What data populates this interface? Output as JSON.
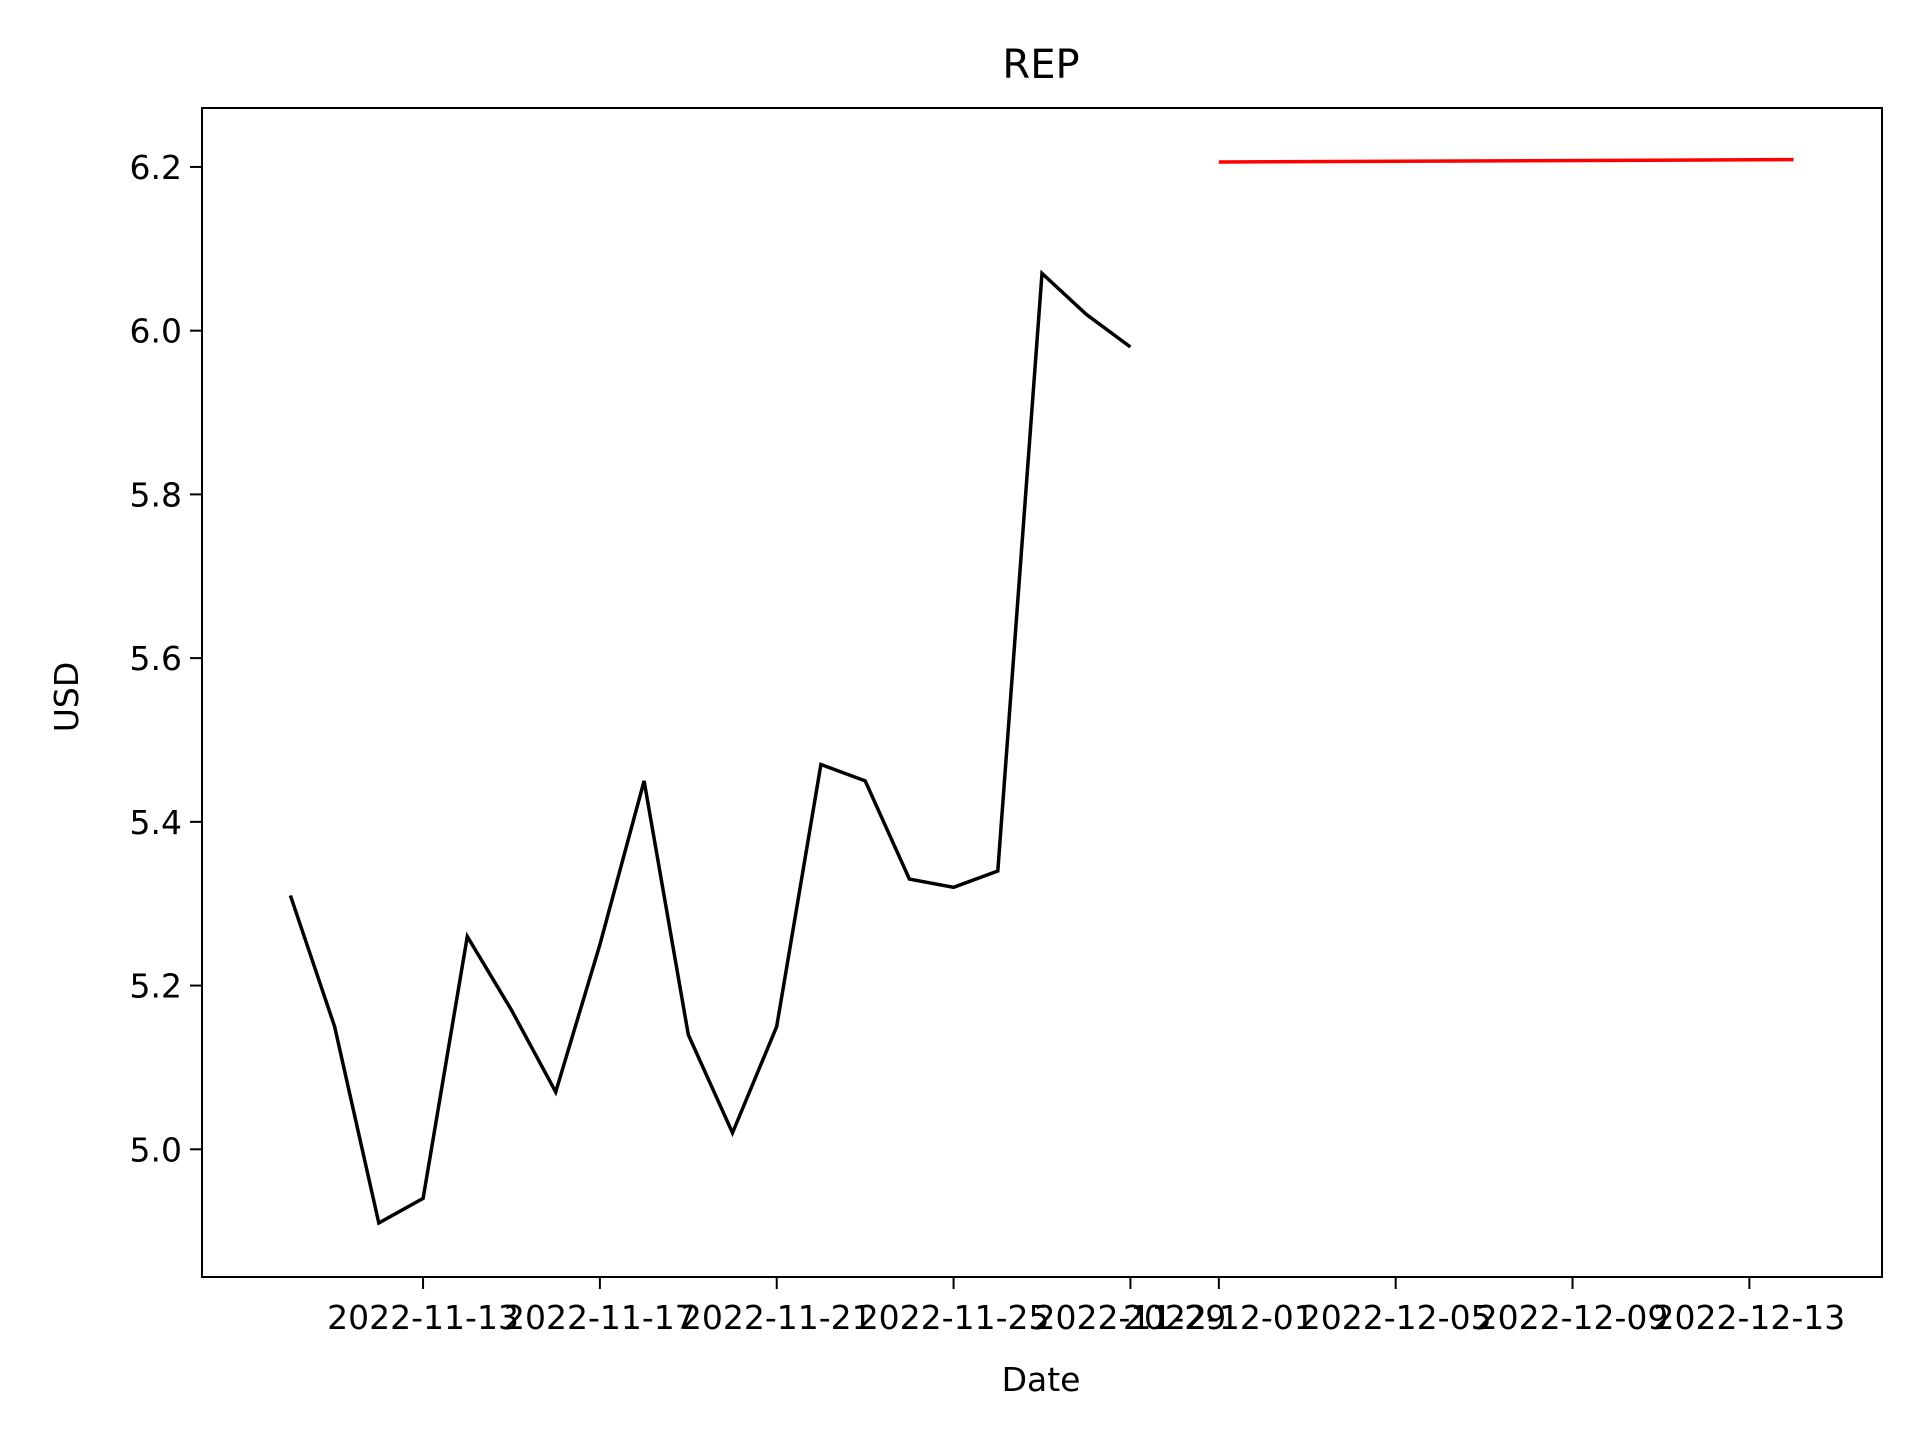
{
  "chart_data": {
    "type": "line",
    "title": "REP",
    "xlabel": "Date",
    "ylabel": "USD",
    "xlim": [
      "2022-11-08",
      "2022-12-16"
    ],
    "ylim": [
      4.844,
      6.272
    ],
    "grid": false,
    "x_ticks": [
      "2022-11-13",
      "2022-11-17",
      "2022-11-21",
      "2022-11-25",
      "2022-11-29",
      "2022-12-01",
      "2022-12-05",
      "2022-12-09",
      "2022-12-13"
    ],
    "y_ticks": [
      "5.0",
      "5.2",
      "5.4",
      "5.6",
      "5.8",
      "6.0",
      "6.2"
    ],
    "series": [
      {
        "color": "#000000",
        "x": [
          "2022-11-10",
          "2022-11-11",
          "2022-11-12",
          "2022-11-13",
          "2022-11-14",
          "2022-11-15",
          "2022-11-16",
          "2022-11-17",
          "2022-11-18",
          "2022-11-19",
          "2022-11-20",
          "2022-11-21",
          "2022-11-22",
          "2022-11-23",
          "2022-11-24",
          "2022-11-25",
          "2022-11-26",
          "2022-11-27",
          "2022-11-28",
          "2022-11-29",
          "2022-11-30"
        ],
        "y": [
          5.31,
          5.15,
          4.91,
          4.94,
          5.26,
          5.17,
          5.07,
          5.25,
          5.45,
          5.14,
          5.02,
          5.15,
          5.47,
          5.45,
          5.33,
          5.32,
          5.34,
          6.07,
          6.02,
          5.98,
          null
        ]
      },
      {
        "color": "#ff0000",
        "x": [
          "2022-12-01",
          "2022-12-14"
        ],
        "y": [
          6.206,
          6.209
        ]
      }
    ]
  }
}
